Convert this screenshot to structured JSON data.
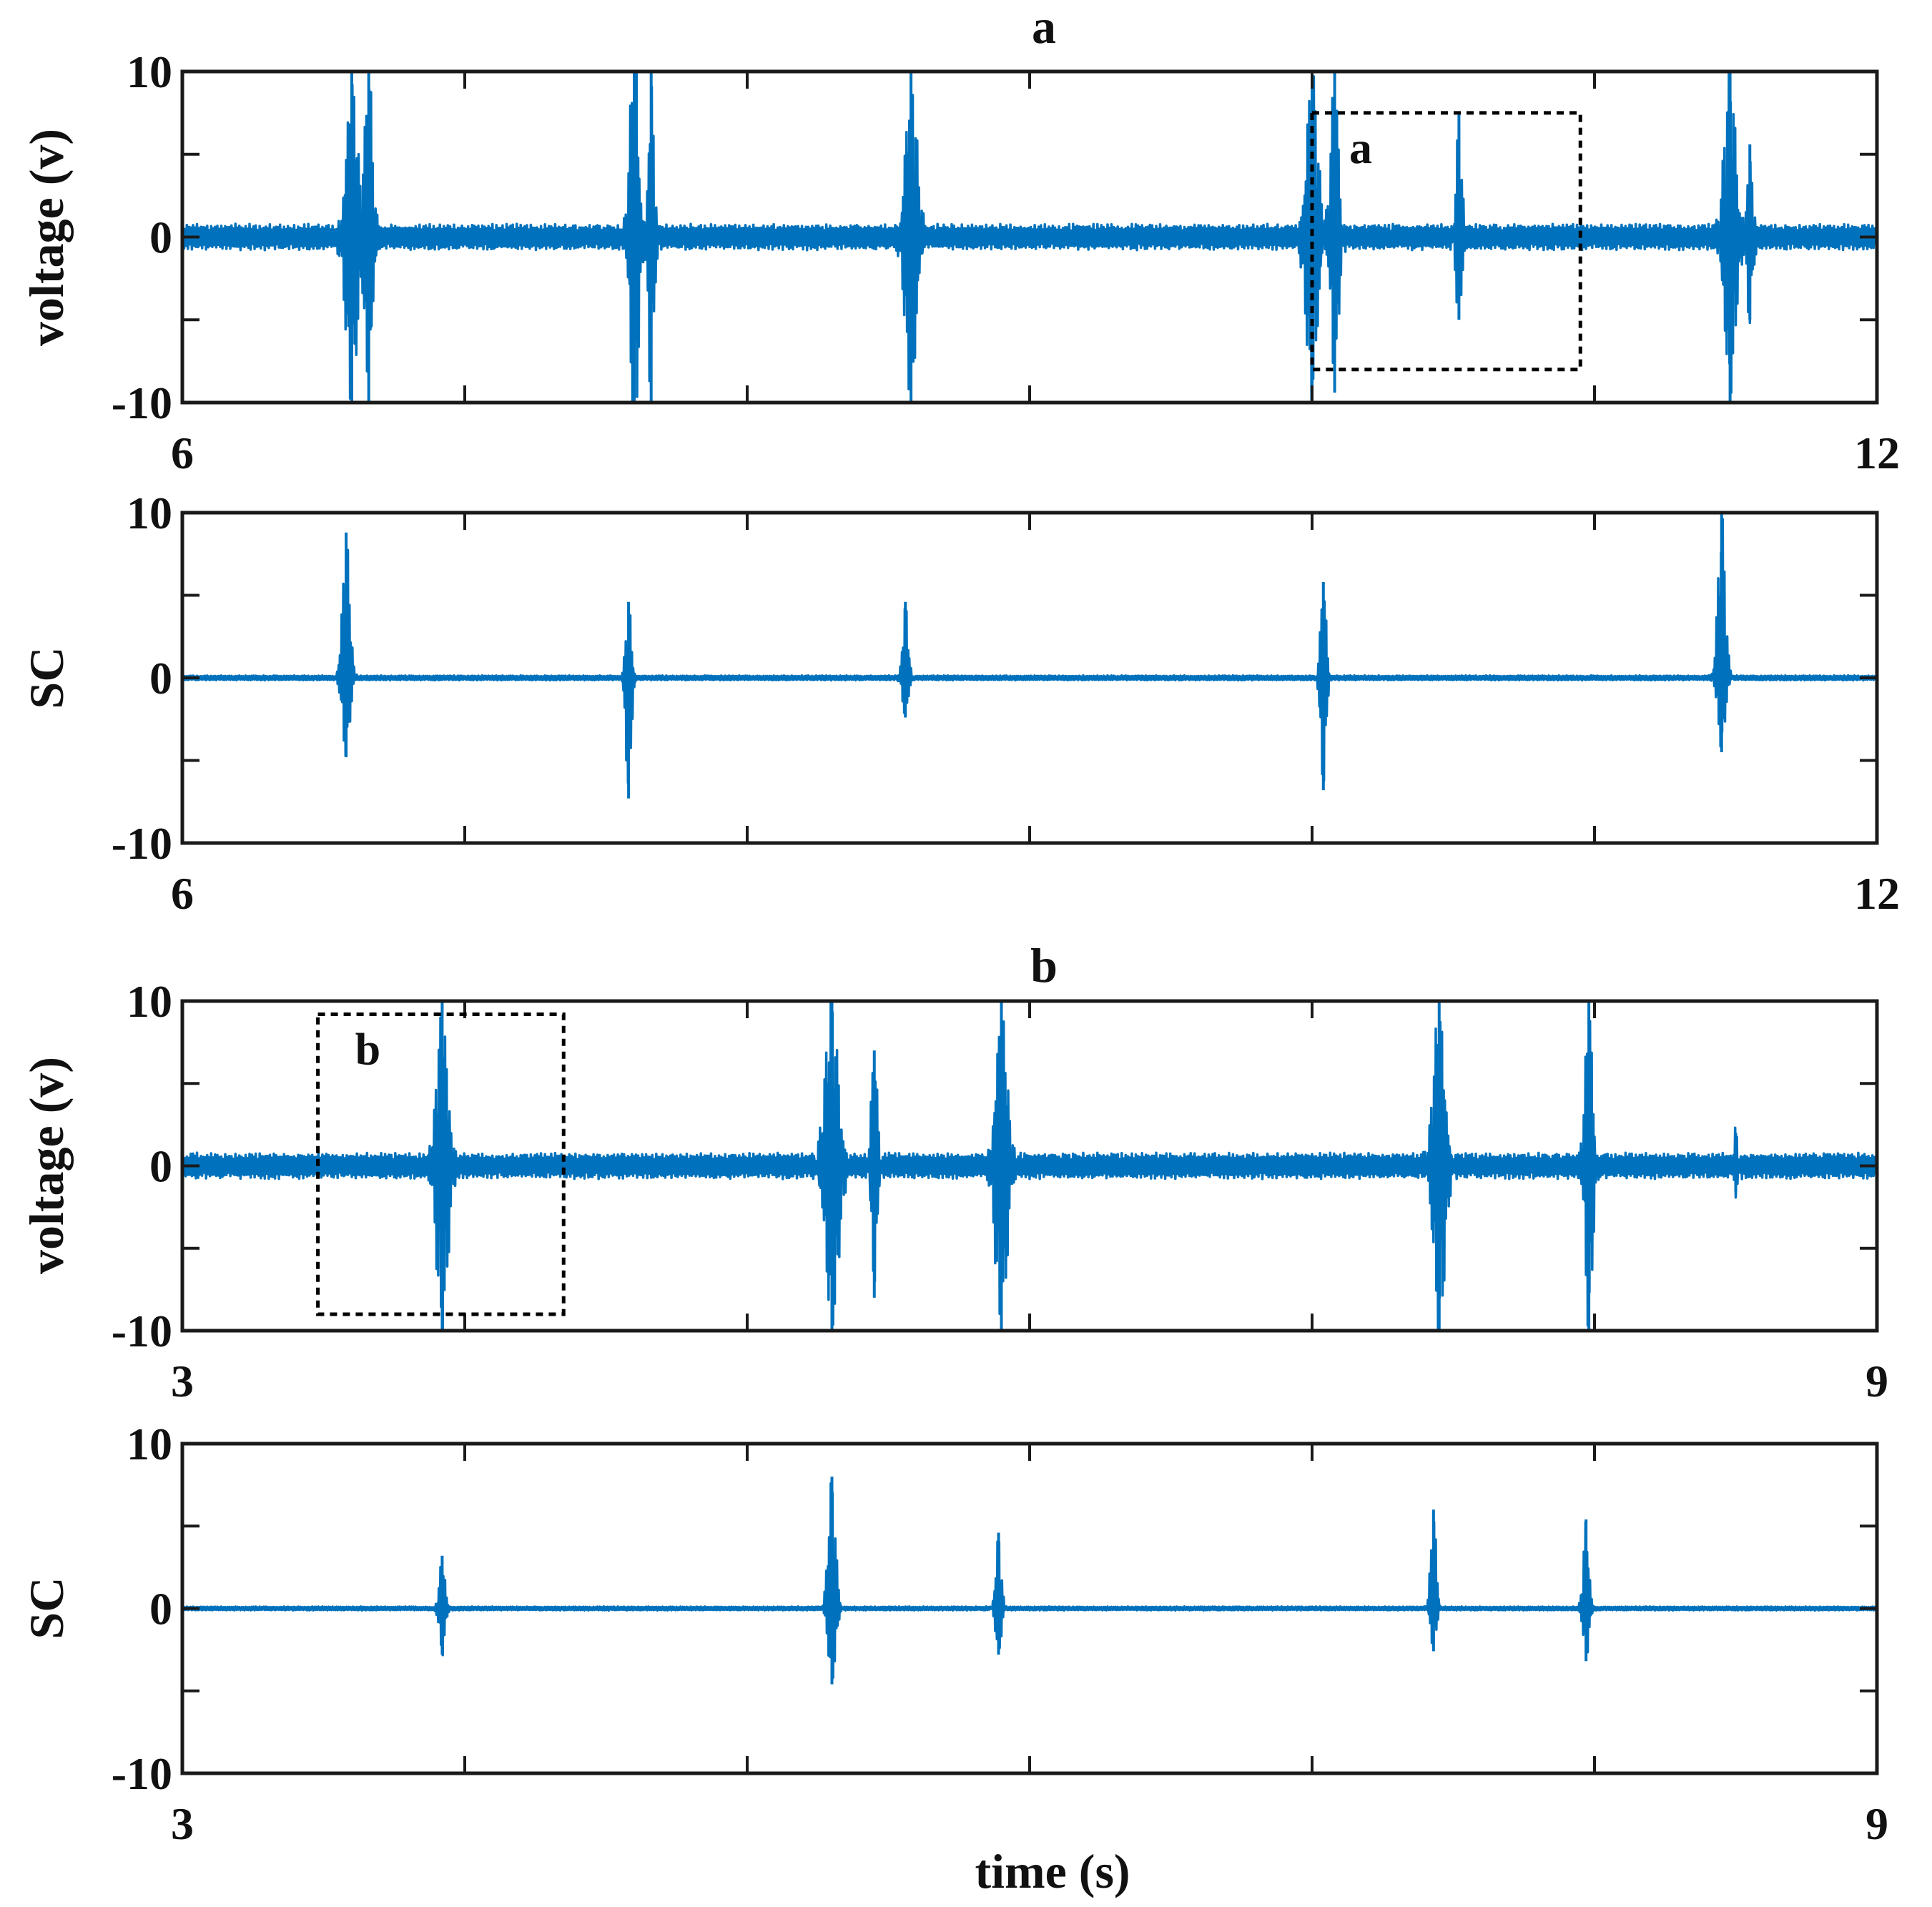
{
  "colors": {
    "series": "#0072BD",
    "axes": "#1a1a1a",
    "background": "#ffffff",
    "zoom_box": "#000000"
  },
  "figure": {
    "xlabel": "time (s)"
  },
  "chart_data": [
    {
      "id": "a-voltage",
      "type": "line",
      "title": "a",
      "xlabel": "",
      "ylabel": "voltage (v)",
      "xlim": [
        6,
        12
      ],
      "ylim": [
        -10,
        10
      ],
      "xticks": [
        6,
        7,
        8,
        9,
        10,
        11,
        12
      ],
      "xtick_labels": [
        "6",
        "",
        "",
        "",
        "",
        "",
        "12"
      ],
      "yticks": [
        -10,
        -5,
        0,
        5,
        10
      ],
      "ytick_labels": [
        "-10",
        "",
        "0",
        "",
        "10"
      ],
      "grid": false,
      "baseline": {
        "amplitude": 0.8,
        "cycles_per_unit": 60
      },
      "events": [
        {
          "t": 6.6,
          "pos": 10,
          "neg": -10,
          "width": 0.06
        },
        {
          "t": 6.66,
          "pos": 10,
          "neg": -10,
          "width": 0.04
        },
        {
          "t": 7.6,
          "pos": 3.2,
          "neg": -3.2,
          "width": 0.05
        },
        {
          "t": 7.6,
          "pos": 10,
          "neg": -10,
          "width": 0.04
        },
        {
          "t": 7.66,
          "pos": 10,
          "neg": -10,
          "width": 0.03
        },
        {
          "t": 8.58,
          "pos": 10,
          "neg": -10,
          "width": 0.06
        },
        {
          "t": 10.0,
          "pos": 10,
          "neg": -10,
          "width": 0.06
        },
        {
          "t": 10.08,
          "pos": 10,
          "neg": -9.4,
          "width": 0.04
        },
        {
          "t": 10.52,
          "pos": 7.4,
          "neg": -5.0,
          "width": 0.03
        },
        {
          "t": 11.48,
          "pos": 10,
          "neg": -10,
          "width": 0.06
        },
        {
          "t": 11.55,
          "pos": 5.6,
          "neg": -5.0,
          "width": 0.03
        }
      ],
      "zoom_box": {
        "label": "a",
        "x0": 10.0,
        "x1": 10.95,
        "y0": -8,
        "y1": 7.5
      }
    },
    {
      "id": "a-sc",
      "type": "line",
      "title": "",
      "xlabel": "",
      "ylabel": "SC",
      "xlim": [
        6,
        12
      ],
      "ylim": [
        -10,
        10
      ],
      "xticks": [
        6,
        7,
        8,
        9,
        10,
        11,
        12
      ],
      "xtick_labels": [
        "6",
        "",
        "",
        "",
        "",
        "",
        "12"
      ],
      "yticks": [
        -10,
        -5,
        0,
        5,
        10
      ],
      "ytick_labels": [
        "-10",
        "",
        "0",
        "",
        "10"
      ],
      "grid": false,
      "baseline": {
        "amplitude": 0.15,
        "cycles_per_unit": 60
      },
      "events": [
        {
          "t": 6.58,
          "pos": 8.8,
          "neg": -4.8,
          "width": 0.04
        },
        {
          "t": 7.58,
          "pos": 4.6,
          "neg": -7.3,
          "width": 0.03
        },
        {
          "t": 8.56,
          "pos": 4.6,
          "neg": -2.4,
          "width": 0.03
        },
        {
          "t": 10.04,
          "pos": 5.8,
          "neg": -6.8,
          "width": 0.03
        },
        {
          "t": 11.45,
          "pos": 10,
          "neg": -4.5,
          "width": 0.04
        }
      ]
    },
    {
      "id": "b-voltage",
      "type": "line",
      "title": "b",
      "xlabel": "",
      "ylabel": "voltage (v)",
      "xlim": [
        3,
        9
      ],
      "ylim": [
        -10,
        10
      ],
      "xticks": [
        3,
        4,
        5,
        6,
        7,
        8,
        9
      ],
      "xtick_labels": [
        "3",
        "",
        "",
        "",
        "",
        "",
        "9"
      ],
      "yticks": [
        -10,
        -5,
        0,
        5,
        10
      ],
      "ytick_labels": [
        "-10",
        "",
        "0",
        "",
        "10"
      ],
      "grid": false,
      "baseline": {
        "amplitude": 0.8,
        "cycles_per_unit": 60
      },
      "events": [
        {
          "t": 3.92,
          "pos": 10,
          "neg": -10,
          "width": 0.06
        },
        {
          "t": 5.3,
          "pos": 10,
          "neg": -10,
          "width": 0.07
        },
        {
          "t": 5.45,
          "pos": 7.0,
          "neg": -8.0,
          "width": 0.03
        },
        {
          "t": 5.9,
          "pos": 10,
          "neg": -10,
          "width": 0.06
        },
        {
          "t": 7.45,
          "pos": 10,
          "neg": -10,
          "width": 0.06
        },
        {
          "t": 7.98,
          "pos": 10,
          "neg": -10,
          "width": 0.04
        },
        {
          "t": 8.5,
          "pos": 2.0,
          "neg": -1.6,
          "width": 0.02
        }
      ],
      "zoom_box": {
        "label": "b",
        "x0": 3.48,
        "x1": 4.35,
        "y0": -9,
        "y1": 9.2
      }
    },
    {
      "id": "b-sc",
      "type": "line",
      "title": "",
      "xlabel": "time (s)",
      "ylabel": "SC",
      "xlim": [
        3,
        9
      ],
      "ylim": [
        -10,
        10
      ],
      "xticks": [
        3,
        4,
        5,
        6,
        7,
        8,
        9
      ],
      "xtick_labels": [
        "3",
        "",
        "",
        "",
        "",
        "",
        "9"
      ],
      "yticks": [
        -10,
        -5,
        0,
        5,
        10
      ],
      "ytick_labels": [
        "-10",
        "",
        "0",
        "",
        "10"
      ],
      "grid": false,
      "baseline": {
        "amplitude": 0.12,
        "cycles_per_unit": 60
      },
      "events": [
        {
          "t": 3.92,
          "pos": 3.2,
          "neg": -2.8,
          "width": 0.03
        },
        {
          "t": 5.3,
          "pos": 8.0,
          "neg": -4.6,
          "width": 0.04
        },
        {
          "t": 5.89,
          "pos": 4.6,
          "neg": -2.8,
          "width": 0.03
        },
        {
          "t": 7.43,
          "pos": 6.0,
          "neg": -2.6,
          "width": 0.03
        },
        {
          "t": 7.97,
          "pos": 5.4,
          "neg": -3.2,
          "width": 0.03
        }
      ]
    }
  ]
}
